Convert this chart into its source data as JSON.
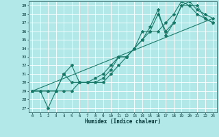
{
  "title": "",
  "xlabel": "Humidex (Indice chaleur)",
  "bg_color": "#b2e8e8",
  "grid_color": "#ffffff",
  "line_color": "#1a7a6a",
  "xlim": [
    -0.5,
    23.5
  ],
  "ylim": [
    26.5,
    39.5
  ],
  "yticks": [
    27,
    28,
    29,
    30,
    31,
    32,
    33,
    34,
    35,
    36,
    37,
    38,
    39
  ],
  "xticks": [
    0,
    1,
    2,
    3,
    4,
    5,
    6,
    7,
    8,
    9,
    10,
    11,
    12,
    13,
    14,
    15,
    16,
    17,
    18,
    19,
    20,
    21,
    22,
    23
  ],
  "line1_x": [
    0,
    1,
    2,
    3,
    4,
    5,
    6,
    7,
    8,
    9,
    10,
    11,
    12,
    13,
    14,
    15,
    16,
    17,
    18,
    19,
    20,
    21,
    22,
    23
  ],
  "line1_y": [
    29,
    29,
    27,
    29,
    31,
    32,
    30,
    30,
    30,
    30,
    31,
    32,
    33,
    34,
    36,
    36,
    38,
    36,
    37,
    39,
    39,
    39,
    37.5,
    37
  ],
  "line2_x": [
    0,
    1,
    2,
    3,
    4,
    5,
    6,
    7,
    8,
    9,
    10,
    11,
    12,
    13,
    14,
    15,
    16,
    17,
    18,
    19,
    20,
    21,
    22,
    23
  ],
  "line2_y": [
    29,
    29,
    29,
    29,
    31,
    30,
    30,
    30,
    30,
    30.5,
    31.5,
    33,
    33,
    34,
    35,
    36.5,
    38.5,
    35.5,
    37,
    39,
    39.5,
    38.5,
    38,
    37.5
  ],
  "line3_x": [
    0,
    1,
    2,
    3,
    4,
    5,
    6,
    7,
    8,
    9,
    10,
    11,
    12,
    13,
    14,
    15,
    16,
    17,
    18,
    19,
    20,
    21,
    22,
    23
  ],
  "line3_y": [
    29,
    29,
    29,
    29,
    29,
    29,
    30,
    30,
    30.5,
    31,
    32,
    33,
    33,
    34,
    35,
    36,
    36,
    37,
    38,
    39.5,
    39,
    38,
    37.5,
    37
  ],
  "line4_x": [
    0,
    23
  ],
  "line4_y": [
    29,
    37.5
  ],
  "marker": "*",
  "markersize": 3,
  "linewidth": 0.8
}
